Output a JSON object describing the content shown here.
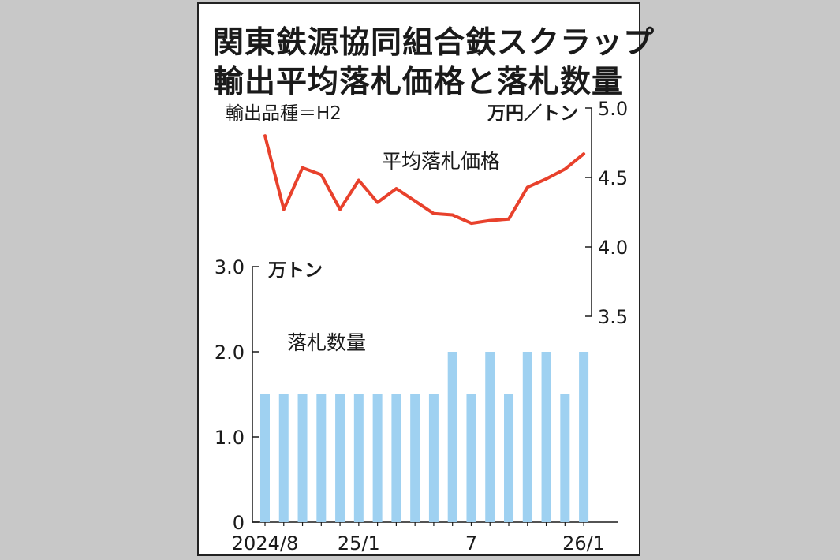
{
  "chart_data": {
    "title": [
      "関東鉄源協同組合鉄スクラップ",
      "輸出平均落札価格と落札数量"
    ],
    "subtitle": "輸出品種＝H2",
    "price_series": {
      "name": "平均落札価格",
      "unit": "万円／トン",
      "type": "line",
      "color": "#e8412c",
      "ylim": [
        3.5,
        5.0
      ],
      "yticks": [
        "5.0",
        "4.5",
        "4.0",
        "3.5"
      ],
      "values": [
        4.8,
        4.27,
        4.57,
        4.52,
        4.27,
        4.48,
        4.32,
        4.42,
        4.33,
        4.24,
        4.23,
        4.17,
        4.19,
        4.2,
        4.43,
        4.49,
        4.56,
        4.67
      ]
    },
    "volume_series": {
      "name": "落札数量",
      "unit": "万トン",
      "type": "bar",
      "color": "#9fd1f1",
      "ylim": [
        0,
        3.0
      ],
      "yticks": [
        "3.0",
        "2.0",
        "1.0",
        "0"
      ],
      "values": [
        1.5,
        1.5,
        1.5,
        1.5,
        1.5,
        1.5,
        1.5,
        1.5,
        1.5,
        1.5,
        2.0,
        1.5,
        2.0,
        1.5,
        2.0,
        2.0,
        1.5,
        2.0
      ]
    },
    "x_labels": [
      {
        "index": 0,
        "label": "2024/8"
      },
      {
        "index": 5,
        "label": "25/1"
      },
      {
        "index": 11,
        "label": "7"
      },
      {
        "index": 17,
        "label": "26/1"
      }
    ]
  }
}
